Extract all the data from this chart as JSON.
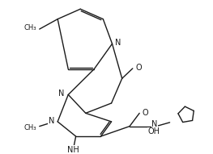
{
  "bg": "#ffffff",
  "lc": "#1a1a1a",
  "lw": 1.0,
  "fs": 7.0,
  "xlim": [
    0,
    10.5
  ],
  "ylim": [
    0,
    7.8
  ]
}
